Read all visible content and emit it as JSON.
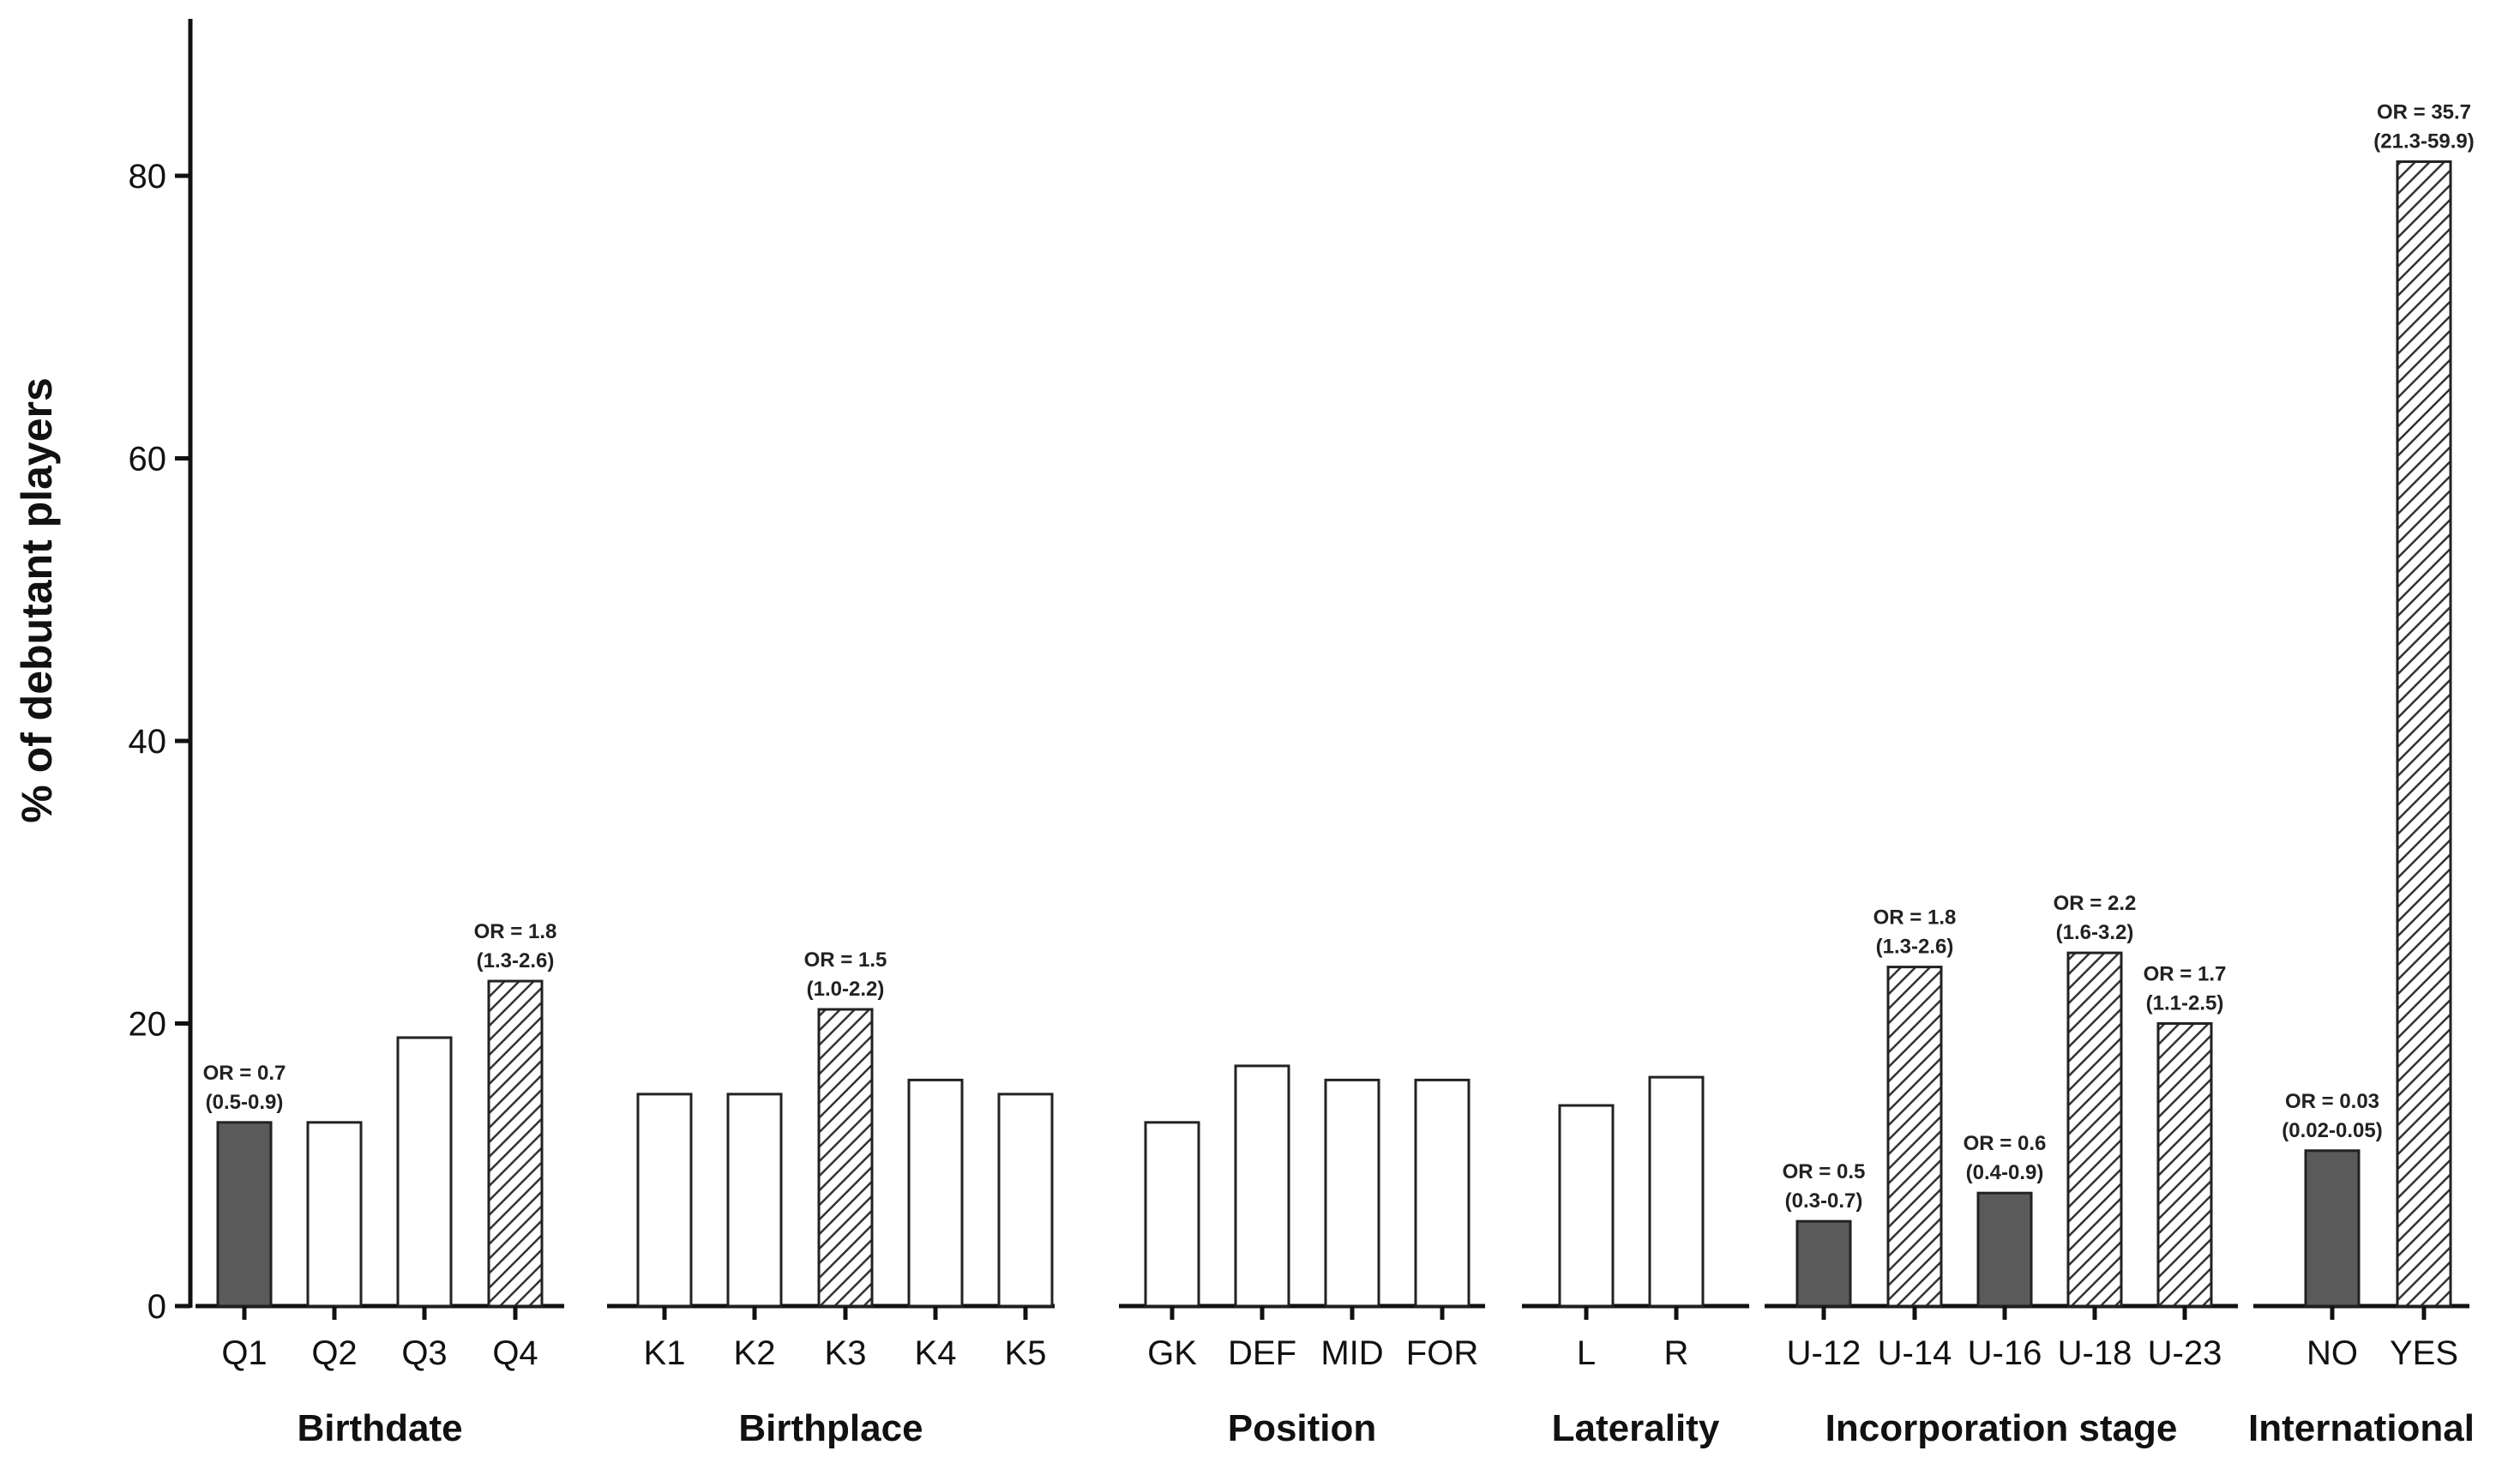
{
  "chart_data": {
    "type": "bar",
    "ylabel": "% of debutant players",
    "ylim": [
      0,
      90
    ],
    "yticks": [
      0,
      20,
      40,
      60,
      80
    ],
    "colors": {
      "significant_low": "#5a5a5a",
      "neutral": "#ffffff",
      "significant_high_hatch": "#333333",
      "outline": "#222222"
    },
    "groups": [
      {
        "name": "Birthdate",
        "bars": [
          {
            "category": "Q1",
            "value": 13,
            "style": "dark",
            "or": "OR = 0.7",
            "ci": "(0.5-0.9)"
          },
          {
            "category": "Q2",
            "value": 13,
            "style": "white"
          },
          {
            "category": "Q3",
            "value": 19,
            "style": "white"
          },
          {
            "category": "Q4",
            "value": 23,
            "style": "hatched",
            "or": "OR = 1.8",
            "ci": "(1.3-2.6)"
          }
        ]
      },
      {
        "name": "Birthplace",
        "bars": [
          {
            "category": "K1",
            "value": 15,
            "style": "white"
          },
          {
            "category": "K2",
            "value": 15,
            "style": "white"
          },
          {
            "category": "K3",
            "value": 21,
            "style": "hatched",
            "or": "OR = 1.5",
            "ci": "(1.0-2.2)"
          },
          {
            "category": "K4",
            "value": 16,
            "style": "white"
          },
          {
            "category": "K5",
            "value": 15,
            "style": "white"
          }
        ]
      },
      {
        "name": "Position",
        "bars": [
          {
            "category": "GK",
            "value": 13,
            "style": "white"
          },
          {
            "category": "DEF",
            "value": 17,
            "style": "white"
          },
          {
            "category": "MID",
            "value": 16,
            "style": "white"
          },
          {
            "category": "FOR",
            "value": 16,
            "style": "white"
          }
        ]
      },
      {
        "name": "Laterality",
        "bars": [
          {
            "category": "L",
            "value": 14.2,
            "style": "white"
          },
          {
            "category": "R",
            "value": 16.2,
            "style": "white"
          }
        ]
      },
      {
        "name": "Incorporation stage",
        "bars": [
          {
            "category": "U-12",
            "value": 6,
            "style": "dark",
            "or": "OR = 0.5",
            "ci": "(0.3-0.7)"
          },
          {
            "category": "U-14",
            "value": 24,
            "style": "hatched",
            "or": "OR = 1.8",
            "ci": "(1.3-2.6)"
          },
          {
            "category": "U-16",
            "value": 8,
            "style": "dark",
            "or": "OR = 0.6",
            "ci": "(0.4-0.9)"
          },
          {
            "category": "U-18",
            "value": 25,
            "style": "hatched",
            "or": "OR = 2.2",
            "ci": "(1.6-3.2)"
          },
          {
            "category": "U-23",
            "value": 20,
            "style": "hatched",
            "or": "OR = 1.7",
            "ci": "(1.1-2.5)"
          }
        ]
      },
      {
        "name": "International",
        "bars": [
          {
            "category": "NO",
            "value": 11,
            "style": "dark",
            "or": "OR = 0.03",
            "ci": "(0.02-0.05)"
          },
          {
            "category": "YES",
            "value": 81,
            "style": "hatched",
            "or": "OR = 35.7",
            "ci": "(21.3-59.9)"
          }
        ]
      }
    ]
  }
}
